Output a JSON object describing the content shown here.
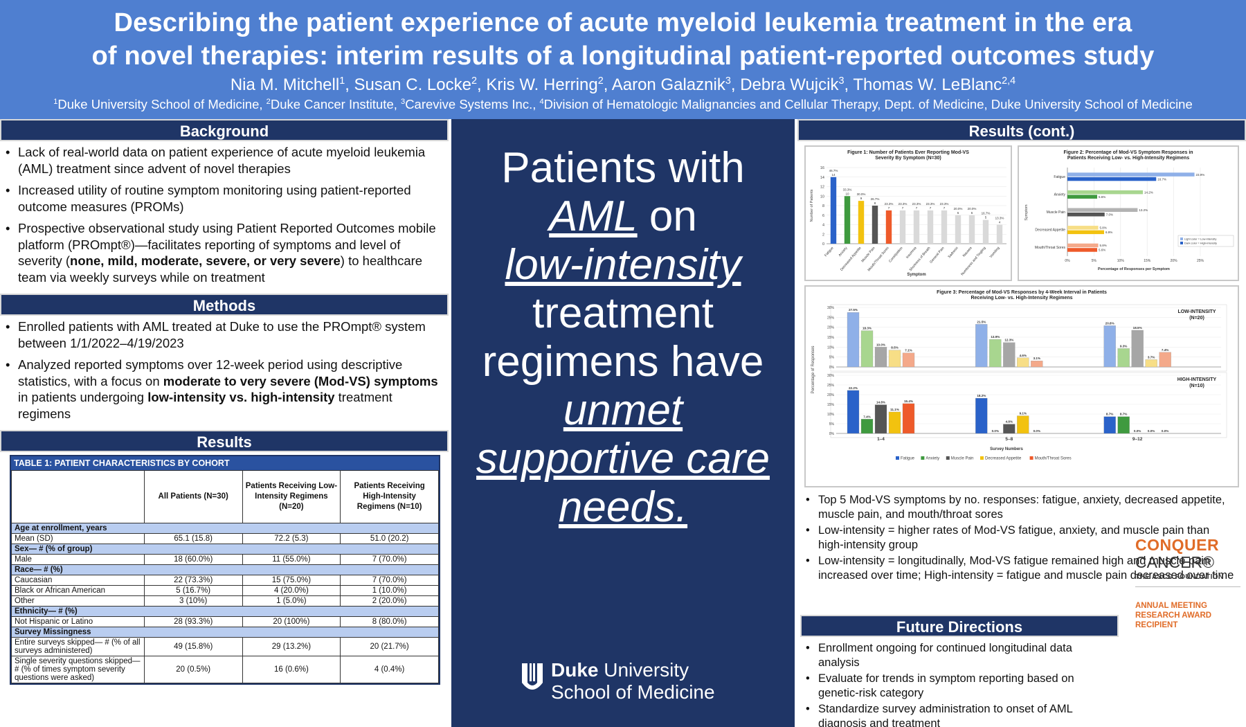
{
  "header": {
    "title_line1": "Describing the patient experience of acute myeloid leukemia treatment in the era",
    "title_line2": "of novel therapies: interim results of a longitudinal patient-reported outcomes study",
    "authors": [
      {
        "name": "Nia M. Mitchell",
        "sup": "1"
      },
      {
        "name": "Susan C. Locke",
        "sup": "2"
      },
      {
        "name": "Kris W. Herring",
        "sup": "2"
      },
      {
        "name": "Aaron Galaznik",
        "sup": "3"
      },
      {
        "name": "Debra Wujcik",
        "sup": "3"
      },
      {
        "name": "Thomas W. LeBlanc",
        "sup": "2,4"
      }
    ],
    "affiliations": [
      {
        "sup": "1",
        "text": "Duke University School of Medicine, "
      },
      {
        "sup": "2",
        "text": "Duke Cancer Institute, "
      },
      {
        "sup": "3",
        "text": "Carevive Systems Inc., "
      },
      {
        "sup": "4",
        "text": "Division of Hematologic Malignancies and Cellular Therapy, Dept. of Medicine, Duke University School of Medicine"
      }
    ]
  },
  "background": {
    "heading": "Background",
    "b1": "Lack of real-world data on patient experience of acute myeloid leukemia (AML) treatment since advent of novel therapies",
    "b2": "Increased utility of routine symptom monitoring using patient-reported outcome measures (PROMs)",
    "b3_pre": "Prospective observational study using Patient Reported Outcomes mobile platform (PROmpt®)—facilitates reporting of symptoms and level of severity (",
    "b3_bold": "none, mild, moderate, severe, or very severe",
    "b3_post": ") to healthcare team via weekly surveys while on treatment"
  },
  "methods": {
    "heading": "Methods",
    "b1": "Enrolled patients with AML treated at Duke to use the PROmpt® system between 1/1/2022–4/19/2023",
    "b2_pre": "Analyzed reported symptoms over 12-week period using descriptive statistics, with a focus on ",
    "b2_bold1": "moderate to very severe (Mod-VS) symptoms",
    "b2_mid": " in patients undergoing ",
    "b2_bold2": "low-intensity vs. high-intensity",
    "b2_post": " treatment regimens"
  },
  "results": {
    "heading": "Results",
    "table": {
      "title": "TABLE 1: PATIENT CHARACTERISTICS BY COHORT",
      "col1": "All Patients (N=30)",
      "col2": "Patients Receiving Low-Intensity Regimens (N=20)",
      "col3": "Patients Receiving High-Intensity Regimens (N=10)",
      "rows": [
        {
          "type": "group",
          "label": "Age at enrollment, years"
        },
        {
          "type": "data",
          "label": "Mean (SD)",
          "v": [
            "65.1 (15.8)",
            "72.2 (5.3)",
            "51.0 (20.2)"
          ]
        },
        {
          "type": "group",
          "label": "Sex— # (% of group)"
        },
        {
          "type": "data",
          "label": "Male",
          "v": [
            "18 (60.0%)",
            "11 (55.0%)",
            "7 (70.0%)"
          ]
        },
        {
          "type": "group",
          "label": "Race— # (%)"
        },
        {
          "type": "data",
          "label": "Caucasian",
          "v": [
            "22 (73.3%)",
            "15 (75.0%)",
            "7 (70.0%)"
          ]
        },
        {
          "type": "data",
          "label": "Black or African American",
          "v": [
            "5 (16.7%)",
            "4 (20.0%)",
            "1 (10.0%)"
          ]
        },
        {
          "type": "data",
          "label": "Other",
          "v": [
            "3 (10%)",
            "1 (5.0%)",
            "2 (20.0%)"
          ]
        },
        {
          "type": "group",
          "label": "Ethnicity— # (%)"
        },
        {
          "type": "data",
          "label": "Not Hispanic or Latino",
          "v": [
            "28 (93.3%)",
            "20 (100%)",
            "8 (80.0%)"
          ]
        },
        {
          "type": "group",
          "label": "Survey Missingness"
        },
        {
          "type": "data",
          "label": "Entire surveys skipped— # (% of all surveys administered)",
          "v": [
            "49 (15.8%)",
            "29 (13.2%)",
            "20 (21.7%)"
          ]
        },
        {
          "type": "data",
          "label": "Single severity questions skipped— # (% of times symptom severity questions were asked)",
          "v": [
            "20 (0.5%)",
            "16 (0.6%)",
            "4 (0.4%)"
          ]
        }
      ]
    }
  },
  "middle": {
    "line1": "Patients with",
    "aml": "AML",
    "on": " on",
    "low": "low-intensity",
    "line4": "treatment",
    "line5": "regimens have",
    "unmet": "unmet",
    "supportive": "supportive care",
    "needs": "needs.",
    "logo_bold": "Duke",
    "logo_rest": " University",
    "logo_line2": "School of Medicine"
  },
  "results_cont": {
    "heading": "Results (cont.)",
    "b1": "Top 5 Mod-VS symptoms by no. responses: fatigue, anxiety, decreased appetite, muscle pain, and mouth/throat sores",
    "b2": "Low-intensity = higher rates of Mod-VS fatigue, anxiety, and muscle pain than high-intensity group",
    "b3": "Low-intensity = longitudinally, Mod-VS fatigue remained high and muscle pain increased over time; High-intensity = fatigue and muscle pain decreased over time"
  },
  "future": {
    "heading": "Future Directions",
    "b1": "Enrollment ongoing for continued longitudinal data analysis",
    "b2": "Evaluate for trends in symptom reporting based on genetic-risk category",
    "b3": "Standardize survey administration to onset of AML diagnosis and treatment"
  },
  "conquer": {
    "line1": "CONQUER",
    "line2": "CANCER®",
    "line3": "THE ASCO FOUNDATION",
    "award1": "ANNUAL MEETING",
    "award2": "RESEARCH AWARD",
    "award3": "RECIPIENT"
  },
  "chart_data": [
    {
      "type": "bar",
      "title": "Figure 1: Number of Patients Ever Reporting Mod-VS Severity By Symptom (N=30)",
      "xlabel": "Symptom",
      "ylabel": "Number of Patients",
      "ylim": [
        0,
        16
      ],
      "yticks": [
        0,
        2,
        4,
        6,
        8,
        10,
        12,
        14,
        16
      ],
      "categories": [
        "Fatigue",
        "Anxiety",
        "Decreased Appetite",
        "Muscle Pain",
        "Mouth/Throat Sores",
        "Constipation",
        "Insomnia",
        "Shortness of Breath",
        "General Pain",
        "Sadness",
        "Nausea",
        "Numbness and Tingling",
        "Vomiting"
      ],
      "values": [
        14,
        10,
        9,
        8,
        7,
        7,
        7,
        7,
        7,
        6,
        6,
        5,
        4
      ],
      "labels": [
        "46.7%",
        "33.3%",
        "30.0%",
        "26.7%",
        "23.3%",
        "23.3%",
        "23.3%",
        "23.3%",
        "23.3%",
        "20.0%",
        "20.0%",
        "16.7%",
        "13.3%"
      ],
      "colors": [
        "#2a62c9",
        "#3f9a3f",
        "#f2c20f",
        "#555555",
        "#ee5a2a",
        "#d9d9d9",
        "#d9d9d9",
        "#d9d9d9",
        "#d9d9d9",
        "#d9d9d9",
        "#d9d9d9",
        "#d9d9d9",
        "#d9d9d9"
      ]
    },
    {
      "type": "bar",
      "orientation": "horizontal",
      "title": "Figure 2: Percentage of Mod-VS Symptom Responses in Patients Receiving Low- vs. High-Intensity Regimens",
      "xlabel": "Percentage of Responses per Symptom",
      "ylabel": "Symptom",
      "xlim": [
        0,
        25
      ],
      "xticks": [
        "0%",
        "5%",
        "10%",
        "15%",
        "20%",
        "25%"
      ],
      "categories": [
        "Fatigue",
        "Anxiety",
        "Muscle Pain",
        "Decreased Appetite",
        "Mouth/Throat Sores"
      ],
      "series": [
        {
          "name": "Light color = Low-intensity",
          "values": [
            23.9,
            14.2,
            13.2,
            5.8,
            5.8
          ],
          "colors": [
            "#8fb0e8",
            "#a8d68f",
            "#b3b3b3",
            "#f7de86",
            "#f4a98a"
          ]
        },
        {
          "name": "Dark color = High-intensity",
          "values": [
            16.7,
            5.6,
            7.0,
            6.9,
            5.6
          ],
          "colors": [
            "#2a62c9",
            "#3f9a3f",
            "#555555",
            "#f2c20f",
            "#ee5a2a"
          ]
        }
      ],
      "labels_low": [
        "23.9%",
        "14.2%",
        "13.2%",
        "5.8%",
        "5.8%"
      ],
      "labels_high": [
        "16.7%",
        "5.6%",
        "7.0%",
        "6.9%",
        "5.6%"
      ]
    },
    {
      "type": "bar",
      "title": "Figure 3: Percentage of Mod-VS Responses by 4-Week Interval in Patients Receiving Low- vs. High-Intensity Regimens",
      "xlabel": "Survey Numbers",
      "ylabel": "Percentage of Responses",
      "ylim": [
        0,
        30
      ],
      "yticks": [
        "0%",
        "5%",
        "10%",
        "15%",
        "20%",
        "25%",
        "30%"
      ],
      "categories": [
        "1–4",
        "5–8",
        "9–12"
      ],
      "panels": [
        {
          "name": "LOW-INTENSITY (N=20)",
          "series": [
            {
              "name": "Fatigue",
              "values": [
                27.5,
                21.5,
                20.8
              ],
              "labels": [
                "27.5%",
                "21.5%",
                "20.8%"
              ]
            },
            {
              "name": "Anxiety",
              "values": [
                18.3,
                13.9,
                9.3
              ],
              "labels": [
                "18.3%",
                "13.9%",
                "9.3%"
              ]
            },
            {
              "name": "Muscle Pain",
              "values": [
                10.0,
                12.3,
                18.5
              ],
              "labels": [
                "10.0%",
                "12.3%",
                "18.5%"
              ]
            },
            {
              "name": "Decreased Appetite",
              "values": [
                8.5,
                4.6,
                3.7
              ],
              "labels": [
                "8.5%",
                "4.6%",
                "3.7%"
              ]
            },
            {
              "name": "Mouth/Throat Sores",
              "values": [
                7.1,
                3.1,
                7.4
              ],
              "labels": [
                "7.1%",
                "3.1%",
                "7.4%"
              ]
            }
          ]
        },
        {
          "name": "HIGH-INTENSITY (N=10)",
          "series": [
            {
              "name": "Fatigue",
              "values": [
                22.2,
                18.2,
                8.7
              ],
              "labels": [
                "22.2%",
                "18.2%",
                "8.7%"
              ]
            },
            {
              "name": "Anxiety",
              "values": [
                7.4,
                0.0,
                8.7
              ],
              "labels": [
                "7.4%",
                "0.0%",
                "8.7%"
              ]
            },
            {
              "name": "Muscle Pain",
              "values": [
                14.8,
                4.8,
                0.0
              ],
              "labels": [
                "14.8%",
                "4.8%",
                "0.0%"
              ]
            },
            {
              "name": "Decreased Appetite",
              "values": [
                11.1,
                9.1,
                0.0
              ],
              "labels": [
                "11.1%",
                "9.1%",
                "0.0%"
              ]
            },
            {
              "name": "Mouth/Throat Sores",
              "values": [
                15.4,
                0.0,
                0.0
              ],
              "labels": [
                "15.4%",
                "0.0%",
                "0.0%"
              ]
            }
          ]
        }
      ],
      "colors": {
        "low": [
          "#8fb0e8",
          "#a8d68f",
          "#a6a6a6",
          "#f7de86",
          "#f4a98a"
        ],
        "high": [
          "#2a62c9",
          "#3f9a3f",
          "#555555",
          "#f2c20f",
          "#ee5a2a"
        ]
      }
    }
  ]
}
